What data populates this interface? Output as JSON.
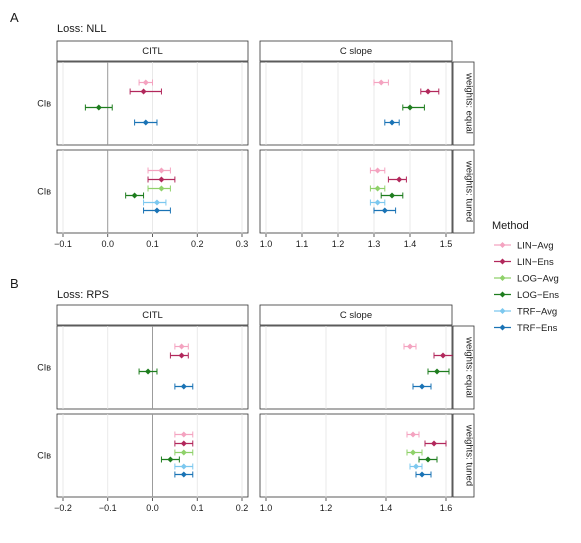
{
  "legend": {
    "title": "Method",
    "items": [
      {
        "name": "LIN−Avg",
        "color": "#f4a3c0"
      },
      {
        "name": "LIN−Ens",
        "color": "#b2285c"
      },
      {
        "name": "LOG−Avg",
        "color": "#8fd16a"
      },
      {
        "name": "LOG−Ens",
        "color": "#1e7d1e"
      },
      {
        "name": "TRF−Avg",
        "color": "#7cc8ef"
      },
      {
        "name": "TRF−Ens",
        "color": "#1a73b5"
      }
    ]
  },
  "chart_data": [
    {
      "type": "scatter",
      "panel_letter": "A",
      "title": "Loss: NLL",
      "row_label": "CIʙ",
      "facets": [
        {
          "col": "CITL",
          "xlim": [
            -0.1,
            0.3
          ],
          "ticks": [
            -0.1,
            0.0,
            0.1,
            0.2,
            0.3
          ],
          "tick_labels": [
            "−0.1",
            "0.0",
            "0.1",
            "0.2",
            "0.3"
          ],
          "reference_line": 0.0
        },
        {
          "col": "C slope",
          "xlim": [
            1.0,
            1.5
          ],
          "ticks": [
            1.0,
            1.1,
            1.2,
            1.3,
            1.4,
            1.5
          ],
          "tick_labels": [
            "1.0",
            "1.1",
            "1.2",
            "1.3",
            "1.4",
            "1.5"
          ],
          "reference_line": null
        }
      ],
      "rows": [
        {
          "label": "weights: equal",
          "series": [
            {
              "method": "LIN−Avg",
              "CITL": [
                0.085,
                0.07,
                0.1
              ],
              "C slope": [
                1.32,
                1.3,
                1.34
              ]
            },
            {
              "method": "LIN−Ens",
              "CITL": [
                0.08,
                0.05,
                0.12
              ],
              "C slope": [
                1.45,
                1.43,
                1.48
              ]
            },
            {
              "method": "LOG−Avg",
              "CITL": null,
              "C slope": null
            },
            {
              "method": "LOG−Ens",
              "CITL": [
                -0.02,
                -0.05,
                0.01
              ],
              "C slope": [
                1.4,
                1.38,
                1.44
              ]
            },
            {
              "method": "TRF−Avg",
              "CITL": null,
              "C slope": null
            },
            {
              "method": "TRF−Ens",
              "CITL": [
                0.085,
                0.06,
                0.11
              ],
              "C slope": [
                1.35,
                1.33,
                1.37
              ]
            }
          ]
        },
        {
          "label": "weights: tuned",
          "series": [
            {
              "method": "LIN−Avg",
              "CITL": [
                0.12,
                0.09,
                0.14
              ],
              "C slope": [
                1.31,
                1.29,
                1.33
              ]
            },
            {
              "method": "LIN−Ens",
              "CITL": [
                0.12,
                0.09,
                0.15
              ],
              "C slope": [
                1.37,
                1.34,
                1.39
              ]
            },
            {
              "method": "LOG−Avg",
              "CITL": [
                0.12,
                0.09,
                0.14
              ],
              "C slope": [
                1.31,
                1.29,
                1.33
              ]
            },
            {
              "method": "LOG−Ens",
              "CITL": [
                0.06,
                0.04,
                0.08
              ],
              "C slope": [
                1.35,
                1.32,
                1.38
              ]
            },
            {
              "method": "TRF−Avg",
              "CITL": [
                0.11,
                0.08,
                0.13
              ],
              "C slope": [
                1.31,
                1.29,
                1.33
              ]
            },
            {
              "method": "TRF−Ens",
              "CITL": [
                0.11,
                0.08,
                0.14
              ],
              "C slope": [
                1.33,
                1.3,
                1.36
              ]
            }
          ]
        }
      ]
    },
    {
      "type": "scatter",
      "panel_letter": "B",
      "title": "Loss: RPS",
      "row_label": "CIʙ",
      "facets": [
        {
          "col": "CITL",
          "xlim": [
            -0.2,
            0.2
          ],
          "ticks": [
            -0.2,
            -0.1,
            0.0,
            0.1,
            0.2
          ],
          "tick_labels": [
            "−0.2",
            "−0.1",
            "0.0",
            "0.1",
            "0.2"
          ],
          "reference_line": 0.0
        },
        {
          "col": "C slope",
          "xlim": [
            1.0,
            1.6
          ],
          "ticks": [
            1.0,
            1.2,
            1.4,
            1.6
          ],
          "tick_labels": [
            "1.0",
            "1.2",
            "1.4",
            "1.6"
          ],
          "reference_line": null
        }
      ],
      "rows": [
        {
          "label": "weights: equal",
          "series": [
            {
              "method": "LIN−Avg",
              "CITL": [
                0.065,
                0.05,
                0.08
              ],
              "C slope": [
                1.48,
                1.46,
                1.5
              ]
            },
            {
              "method": "LIN−Ens",
              "CITL": [
                0.065,
                0.04,
                0.08
              ],
              "C slope": [
                1.59,
                1.56,
                1.63
              ]
            },
            {
              "method": "LOG−Avg",
              "CITL": null,
              "C slope": null
            },
            {
              "method": "LOG−Ens",
              "CITL": [
                -0.01,
                -0.03,
                0.01
              ],
              "C slope": [
                1.57,
                1.54,
                1.61
              ]
            },
            {
              "method": "TRF−Avg",
              "CITL": null,
              "C slope": null
            },
            {
              "method": "TRF−Ens",
              "CITL": [
                0.07,
                0.05,
                0.09
              ],
              "C slope": [
                1.52,
                1.49,
                1.55
              ]
            }
          ]
        },
        {
          "label": "weights: tuned",
          "series": [
            {
              "method": "LIN−Avg",
              "CITL": [
                0.07,
                0.05,
                0.09
              ],
              "C slope": [
                1.49,
                1.47,
                1.51
              ]
            },
            {
              "method": "LIN−Ens",
              "CITL": [
                0.07,
                0.05,
                0.09
              ],
              "C slope": [
                1.56,
                1.53,
                1.6
              ]
            },
            {
              "method": "LOG−Avg",
              "CITL": [
                0.07,
                0.05,
                0.09
              ],
              "C slope": [
                1.49,
                1.47,
                1.52
              ]
            },
            {
              "method": "LOG−Ens",
              "CITL": [
                0.04,
                0.02,
                0.06
              ],
              "C slope": [
                1.54,
                1.51,
                1.57
              ]
            },
            {
              "method": "TRF−Avg",
              "CITL": [
                0.07,
                0.05,
                0.09
              ],
              "C slope": [
                1.5,
                1.48,
                1.52
              ]
            },
            {
              "method": "TRF−Ens",
              "CITL": [
                0.07,
                0.05,
                0.09
              ],
              "C slope": [
                1.52,
                1.5,
                1.55
              ]
            }
          ]
        }
      ]
    }
  ]
}
